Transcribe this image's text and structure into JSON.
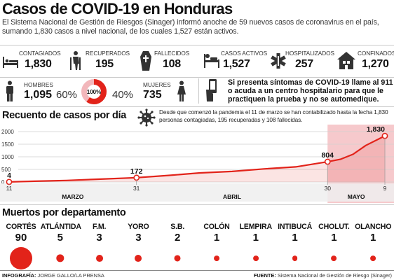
{
  "header": {
    "title": "Casos de COVID-19 en Honduras",
    "subtitle": "El Sistema Nacional de Gestión de Riesgos (Sinager) informó anoche de 59 nuevos casos de coronavirus en el país, sumando 1,830 casos a nivel nacional, de los cuales 1,527 están activos."
  },
  "stats": [
    {
      "label": "CONTAGIADOS",
      "value": "1,830",
      "icon": "hospital-bed-icon"
    },
    {
      "label": "RECUPERADOS",
      "value": "195",
      "icon": "walking-person-icon"
    },
    {
      "label": "FALLECIDOS",
      "value": "108",
      "icon": "coffin-icon"
    },
    {
      "label": "CASOS ACTIVOS",
      "value": "1,527",
      "icon": "patient-in-bed-icon"
    },
    {
      "label": "HOSPITALIZADOS",
      "value": "257",
      "icon": "medical-star-icon"
    },
    {
      "label": "CONFINADOS",
      "value": "1,270",
      "icon": "house-icon"
    }
  ],
  "gender": {
    "men_label": "HOMBRES",
    "men_value": "1,095",
    "men_pct": "60%",
    "ring_label": "100%",
    "women_pct": "40%",
    "women_label": "MUJERES",
    "women_value": "735",
    "men_fraction": 0.6
  },
  "advice": {
    "text_line1": "Si presenta síntomas de COVID-19 llame al 911",
    "text_line2": "o acuda a un centro hospitalario para que le",
    "text_line3": "practiquen la prueba y no se automedique.",
    "icon": "phone-hand-icon"
  },
  "cases_section": {
    "title": "Recuento de casos por día",
    "note": "Desde que comenzó la pandemia el 11 de marzo se han contabilizado hasta la fecha 1,830 personas contagiadas, 195 recuperadas y 108 fallecidas.",
    "icon": "virus-icon"
  },
  "chart_data": {
    "type": "area",
    "title": "Recuento de casos por día",
    "x_tick_labels": [
      "11",
      "31",
      "30",
      "9"
    ],
    "month_labels": [
      "MARZO",
      "ABRIL",
      "MAYO"
    ],
    "y_ticks": [
      0,
      500,
      1000,
      1500,
      2000
    ],
    "ylim": [
      0,
      2000
    ],
    "x": [
      "2020-03-11",
      "2020-03-15",
      "2020-03-20",
      "2020-03-25",
      "2020-03-31",
      "2020-04-05",
      "2020-04-10",
      "2020-04-15",
      "2020-04-20",
      "2020-04-25",
      "2020-04-30",
      "2020-05-02",
      "2020-05-04",
      "2020-05-06",
      "2020-05-09"
    ],
    "values": [
      4,
      30,
      60,
      110,
      172,
      260,
      360,
      420,
      520,
      600,
      804,
      900,
      1100,
      1450,
      1830
    ],
    "labeled_points": [
      {
        "x": "2020-03-11",
        "value": "4"
      },
      {
        "x": "2020-03-31",
        "value": "172"
      },
      {
        "x": "2020-04-30",
        "value": "804"
      },
      {
        "x": "2020-05-09",
        "value": "1,830"
      }
    ],
    "line_color": "#e2231a",
    "highlight_color": "#f6c9cc",
    "grid": true
  },
  "deaths_section": {
    "title": "Muertos por departamento",
    "departments": [
      {
        "name": "CORTÉS",
        "value": "90",
        "count": 90
      },
      {
        "name": "ATLÁNTIDA",
        "value": "5",
        "count": 5
      },
      {
        "name": "F.M.",
        "value": "3",
        "count": 3
      },
      {
        "name": "YORO",
        "value": "3",
        "count": 3
      },
      {
        "name": "S.B.",
        "value": "2",
        "count": 2
      },
      {
        "name": "COLÓN",
        "value": "1",
        "count": 1
      },
      {
        "name": "LEMPIRA",
        "value": "1",
        "count": 1
      },
      {
        "name": "INTIBUCÁ",
        "value": "1",
        "count": 1
      },
      {
        "name": "CHOLUT.",
        "value": "1",
        "count": 1
      },
      {
        "name": "OLANCHO",
        "value": "1",
        "count": 1
      }
    ],
    "dot_color": "#e2231a"
  },
  "footer": {
    "credit_label": "INFOGRAFÍA:",
    "credit_value": "JORGE GALLO/LA PRENSA",
    "source_label": "FUENTE:",
    "source_value": "Sistema Nacional de Gestión de Riesgo (Sinager)"
  }
}
